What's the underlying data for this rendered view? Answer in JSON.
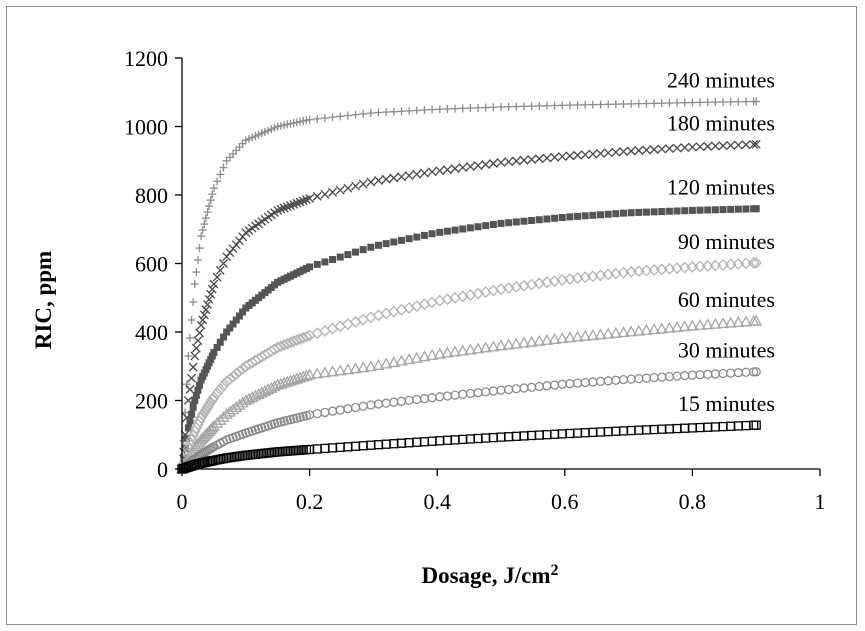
{
  "chart_data": {
    "type": "scatter",
    "title": "",
    "xlabel": "Dosage, J/cm",
    "xlabel_superscript": "2",
    "ylabel": "RIC, ppm",
    "xlim": [
      0,
      1
    ],
    "ylim": [
      0,
      1200
    ],
    "x_ticks": [
      "0",
      "0.2",
      "0.4",
      "0.6",
      "0.8",
      "1"
    ],
    "y_ticks": [
      "0",
      "200",
      "400",
      "600",
      "800",
      "1000",
      "1200"
    ],
    "x_tick_values": [
      0,
      0.2,
      0.4,
      0.6,
      0.8,
      1
    ],
    "y_tick_values": [
      0,
      200,
      400,
      600,
      800,
      1000,
      1200
    ],
    "grid": false,
    "legend": "none",
    "series": [
      {
        "name": "240 minutes",
        "marker": "plus",
        "color": "#8c8c8c",
        "x": [
          0,
          0.01,
          0.02,
          0.03,
          0.05,
          0.07,
          0.1,
          0.15,
          0.2,
          0.3,
          0.4,
          0.5,
          0.6,
          0.7,
          0.8,
          0.9
        ],
        "y": [
          0,
          330,
          540,
          680,
          820,
          900,
          960,
          1000,
          1020,
          1040,
          1050,
          1057,
          1062,
          1066,
          1070,
          1073
        ]
      },
      {
        "name": "180 minutes",
        "marker": "cross",
        "color": "#4a4a4a",
        "x": [
          0,
          0.01,
          0.02,
          0.03,
          0.05,
          0.07,
          0.1,
          0.15,
          0.2,
          0.3,
          0.4,
          0.5,
          0.6,
          0.7,
          0.8,
          0.9
        ],
        "y": [
          0,
          200,
          330,
          420,
          540,
          620,
          690,
          755,
          790,
          840,
          870,
          895,
          913,
          928,
          940,
          948
        ]
      },
      {
        "name": "120 minutes",
        "marker": "square",
        "color": "#555555",
        "x": [
          0,
          0.01,
          0.02,
          0.03,
          0.05,
          0.07,
          0.1,
          0.15,
          0.2,
          0.3,
          0.4,
          0.5,
          0.6,
          0.7,
          0.8,
          0.9
        ],
        "y": [
          0,
          120,
          200,
          260,
          340,
          400,
          470,
          545,
          590,
          650,
          690,
          717,
          735,
          748,
          755,
          760
        ]
      },
      {
        "name": "90 minutes",
        "marker": "diamond",
        "color": "#b4b4b4",
        "x": [
          0,
          0.01,
          0.02,
          0.03,
          0.05,
          0.07,
          0.1,
          0.15,
          0.2,
          0.3,
          0.4,
          0.5,
          0.6,
          0.7,
          0.8,
          0.9
        ],
        "y": [
          0,
          60,
          110,
          150,
          210,
          255,
          300,
          355,
          390,
          445,
          490,
          525,
          553,
          575,
          590,
          602
        ]
      },
      {
        "name": "60 minutes",
        "marker": "triangle",
        "color": "#a6a6a6",
        "x": [
          0,
          0.01,
          0.02,
          0.03,
          0.05,
          0.07,
          0.1,
          0.15,
          0.2,
          0.3,
          0.4,
          0.5,
          0.6,
          0.7,
          0.8,
          0.9
        ],
        "y": [
          0,
          30,
          60,
          85,
          125,
          160,
          200,
          245,
          275,
          300,
          335,
          360,
          382,
          400,
          418,
          432
        ]
      },
      {
        "name": "30 minutes",
        "marker": "circle",
        "color": "#8a8a8a",
        "x": [
          0,
          0.01,
          0.02,
          0.03,
          0.05,
          0.07,
          0.1,
          0.15,
          0.2,
          0.3,
          0.4,
          0.5,
          0.6,
          0.7,
          0.8,
          0.9
        ],
        "y": [
          0,
          15,
          30,
          42,
          65,
          85,
          105,
          135,
          158,
          188,
          210,
          230,
          248,
          262,
          274,
          284
        ]
      },
      {
        "name": "15 minutes",
        "marker": "square-open",
        "color": "#000000",
        "x": [
          0,
          0.01,
          0.02,
          0.03,
          0.05,
          0.07,
          0.1,
          0.15,
          0.2,
          0.3,
          0.4,
          0.5,
          0.6,
          0.7,
          0.8,
          0.9
        ],
        "y": [
          0,
          6,
          12,
          17,
          25,
          32,
          40,
          50,
          57,
          70,
          82,
          93,
          103,
          112,
          120,
          128
        ]
      }
    ]
  }
}
